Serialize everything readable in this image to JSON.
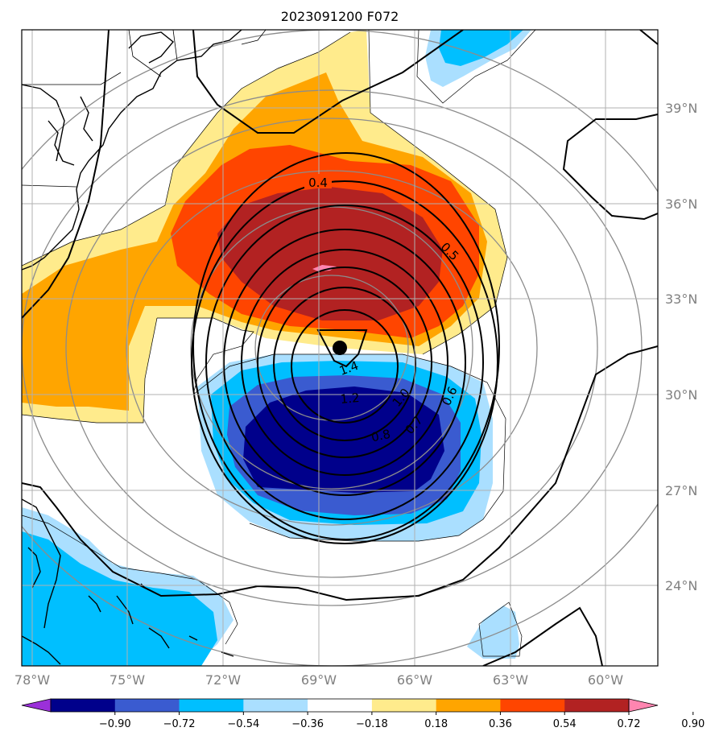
{
  "title": "2023091200 F072",
  "map": {
    "lon_ticks": [
      "78°W",
      "75°W",
      "72°W",
      "69°W",
      "66°W",
      "63°W",
      "60°W"
    ],
    "lat_ticks": [
      "39°N",
      "36°N",
      "33°N",
      "30°N",
      "27°N",
      "24°N"
    ],
    "storm_center": {
      "lon": -68.3,
      "lat": 31.5
    }
  },
  "contour_labels": [
    "0.4",
    "0.5",
    "0.6",
    "0.7",
    "0.8",
    "1.0",
    "1.2",
    "1.4"
  ],
  "colorbar": {
    "labels": [
      "−0.90",
      "−0.72",
      "−0.54",
      "−0.36",
      "−0.18",
      "0.18",
      "0.36",
      "0.54",
      "0.72",
      "0.90"
    ],
    "colors": [
      "#9b30d9",
      "#00008b",
      "#3a5bd0",
      "#00bfff",
      "#aadfff",
      "#ffffff",
      "#ffeb8c",
      "#ffa500",
      "#ff4500",
      "#b22222",
      "#ff85b0"
    ]
  }
}
